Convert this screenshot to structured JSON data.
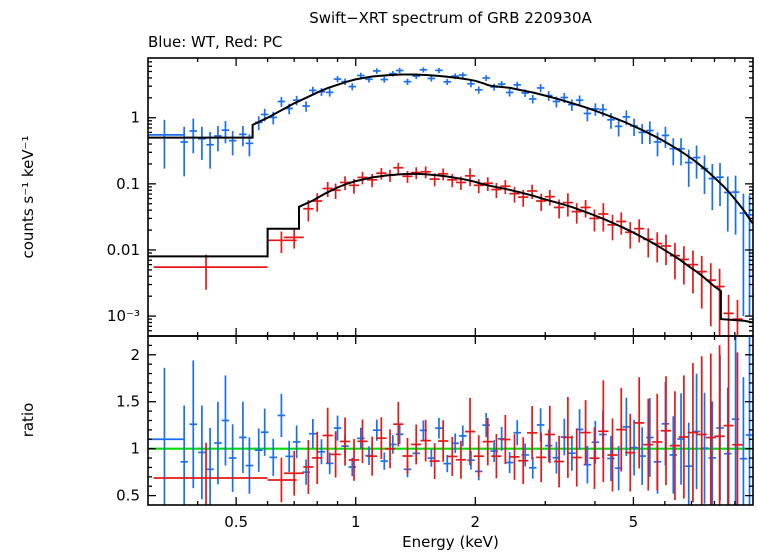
{
  "title": "Swift−XRT spectrum of GRB 220930A",
  "subtitle": "Blue: WT, Red: PC",
  "chart_data": {
    "type": "scatter",
    "description": "Two-panel X-ray spectrum: top = counts spectrum (log-log) with WT (blue) and PC (red) data points plus black folded model lines; bottom = data/model ratio (log x, linear y) with green unity line.",
    "xlabel": "Energy (keV)",
    "xlim": [
      0.3,
      10.0
    ],
    "xscale": "log",
    "xticks": {
      "major": [
        0.5,
        1,
        2,
        5
      ],
      "labels": [
        "0.5",
        "1",
        "2",
        "5"
      ],
      "minor": [
        0.4,
        0.6,
        0.7,
        0.8,
        0.9,
        3,
        4,
        6,
        7,
        8,
        9
      ]
    },
    "spectrum": {
      "ylabel": "counts s⁻¹ keV⁻¹",
      "yscale": "log",
      "ylim": [
        0.0005,
        8
      ],
      "model_color": "#000000",
      "yticks": [
        {
          "v": 0.001,
          "label": "10⁻³"
        },
        {
          "v": 0.01,
          "label": "0.01"
        },
        {
          "v": 0.1,
          "label": "0.1"
        },
        {
          "v": 1,
          "label": "1"
        }
      ],
      "wt": {
        "name": "WT",
        "color": "#1a6ff0",
        "model": [
          [
            0.3,
            0.5
          ],
          [
            0.55,
            0.5
          ],
          [
            0.55,
            0.78
          ],
          [
            0.6,
            1.0
          ],
          [
            0.65,
            1.3
          ],
          [
            0.7,
            1.65
          ],
          [
            0.75,
            2.0
          ],
          [
            0.8,
            2.4
          ],
          [
            0.85,
            2.8
          ],
          [
            0.9,
            3.15
          ],
          [
            0.95,
            3.5
          ],
          [
            1.0,
            3.8
          ],
          [
            1.05,
            4.0
          ],
          [
            1.1,
            4.2
          ],
          [
            1.2,
            4.4
          ],
          [
            1.3,
            4.5
          ],
          [
            1.4,
            4.5
          ],
          [
            1.5,
            4.42
          ],
          [
            1.6,
            4.3
          ],
          [
            1.7,
            4.15
          ],
          [
            1.8,
            4.0
          ],
          [
            1.9,
            3.82
          ],
          [
            2.0,
            3.62
          ],
          [
            2.05,
            3.45
          ],
          [
            2.1,
            3.3
          ],
          [
            2.15,
            3.12
          ],
          [
            2.2,
            3.02
          ],
          [
            2.25,
            2.98
          ],
          [
            2.35,
            2.9
          ],
          [
            2.45,
            2.82
          ],
          [
            2.6,
            2.62
          ],
          [
            2.8,
            2.4
          ],
          [
            3.0,
            2.16
          ],
          [
            3.25,
            1.9
          ],
          [
            3.5,
            1.66
          ],
          [
            3.75,
            1.46
          ],
          [
            4.0,
            1.28
          ],
          [
            4.25,
            1.12
          ],
          [
            4.5,
            0.98
          ],
          [
            4.75,
            0.86
          ],
          [
            5.0,
            0.75
          ],
          [
            5.25,
            0.655
          ],
          [
            5.5,
            0.572
          ],
          [
            5.75,
            0.5
          ],
          [
            6.0,
            0.432
          ],
          [
            6.25,
            0.375
          ],
          [
            6.5,
            0.325
          ],
          [
            6.75,
            0.281
          ],
          [
            7.0,
            0.242
          ],
          [
            7.25,
            0.206
          ],
          [
            7.5,
            0.175
          ],
          [
            7.75,
            0.148
          ],
          [
            8.0,
            0.124
          ],
          [
            8.25,
            0.104
          ],
          [
            8.5,
            0.087
          ],
          [
            8.75,
            0.072
          ],
          [
            9.0,
            0.059
          ],
          [
            9.25,
            0.048
          ],
          [
            9.5,
            0.039
          ],
          [
            9.75,
            0.031
          ],
          [
            10.0,
            0.025
          ]
        ],
        "points": [
          [
            0.33,
            0.55,
            0.38,
            0.3,
            0.37
          ],
          [
            0.37,
            0.43,
            0.3
          ],
          [
            0.39,
            0.63,
            0.34
          ],
          [
            0.41,
            0.48,
            0.25
          ],
          [
            0.43,
            0.39,
            0.22
          ],
          [
            0.45,
            0.53,
            0.22
          ],
          [
            0.47,
            0.65,
            0.24
          ],
          [
            0.49,
            0.45,
            0.18
          ],
          [
            0.52,
            0.56,
            0.19
          ],
          [
            0.54,
            0.41,
            0.15
          ],
          [
            0.57,
            0.85,
            0.2
          ],
          [
            0.59,
            1.12,
            0.24
          ],
          [
            0.62,
            1.01,
            0.22
          ],
          [
            0.65,
            1.76,
            0.3
          ],
          [
            0.68,
            1.38,
            0.25
          ],
          [
            0.71,
            1.84,
            0.3
          ],
          [
            0.75,
            1.5,
            0.27
          ],
          [
            0.78,
            2.59,
            0.35
          ],
          [
            0.82,
            2.47,
            0.34
          ],
          [
            0.86,
            2.42,
            0.33
          ],
          [
            0.9,
            3.84,
            0.42
          ],
          [
            0.94,
            3.52,
            0.4
          ],
          [
            0.98,
            2.96,
            0.36
          ],
          [
            1.03,
            4.35,
            0.44
          ],
          [
            1.08,
            3.81,
            0.41
          ],
          [
            1.13,
            5.1,
            0.48
          ],
          [
            1.18,
            3.78,
            0.4
          ],
          [
            1.24,
            4.64,
            0.44
          ],
          [
            1.29,
            5.18,
            0.47
          ],
          [
            1.35,
            3.51,
            0.38
          ],
          [
            1.42,
            4.26,
            0.42
          ],
          [
            1.48,
            5.3,
            0.47
          ],
          [
            1.55,
            3.92,
            0.4
          ],
          [
            1.62,
            5.2,
            0.47
          ],
          [
            1.7,
            3.49,
            0.38
          ],
          [
            1.78,
            4.26,
            0.42
          ],
          [
            1.86,
            4.42,
            0.43
          ],
          [
            1.95,
            3.26,
            0.37
          ],
          [
            2.04,
            2.64,
            0.33
          ],
          [
            2.13,
            3.99,
            0.41
          ],
          [
            2.23,
            2.92,
            0.35
          ],
          [
            2.33,
            3.22,
            0.37
          ],
          [
            2.44,
            2.41,
            0.32
          ],
          [
            2.55,
            3.14,
            0.36
          ],
          [
            2.67,
            2.37,
            0.31
          ],
          [
            2.79,
            1.92,
            0.28
          ],
          [
            2.92,
            2.82,
            0.4
          ],
          [
            3.06,
            2.16,
            0.36
          ],
          [
            3.2,
            1.76,
            0.33
          ],
          [
            3.35,
            2.02,
            0.35
          ],
          [
            3.5,
            1.58,
            0.31
          ],
          [
            3.66,
            1.84,
            0.33
          ],
          [
            3.83,
            1.16,
            0.28
          ],
          [
            4.01,
            1.36,
            0.29
          ],
          [
            4.19,
            1.33,
            0.29
          ],
          [
            4.39,
            0.93,
            0.25
          ],
          [
            4.59,
            0.74,
            0.22
          ],
          [
            4.8,
            1.03,
            0.26
          ],
          [
            5.02,
            0.75,
            0.22
          ],
          [
            5.26,
            0.6,
            0.2
          ],
          [
            5.5,
            0.64,
            0.24
          ],
          [
            5.75,
            0.43,
            0.17
          ],
          [
            6.02,
            0.54,
            0.19
          ],
          [
            6.3,
            0.34,
            0.15
          ],
          [
            6.59,
            0.34,
            0.15
          ],
          [
            6.89,
            0.21,
            0.12
          ],
          [
            7.21,
            0.25,
            0.13
          ],
          [
            7.55,
            0.17,
            0.1
          ],
          [
            7.9,
            0.12,
            0.08
          ],
          [
            8.26,
            0.126,
            0.08
          ],
          [
            8.64,
            0.074,
            0.055
          ],
          [
            9.04,
            0.075,
            0.058
          ],
          [
            9.46,
            0.036,
            0.035
          ],
          [
            9.8,
            0.034,
            0.033
          ]
        ]
      },
      "pc": {
        "name": "PC",
        "color": "#e51717",
        "model": [
          [
            0.3,
            0.008
          ],
          [
            0.6,
            0.008
          ],
          [
            0.6,
            0.021
          ],
          [
            0.72,
            0.021
          ],
          [
            0.72,
            0.045
          ],
          [
            0.78,
            0.056
          ],
          [
            0.84,
            0.072
          ],
          [
            0.9,
            0.088
          ],
          [
            0.95,
            0.1
          ],
          [
            1.0,
            0.11
          ],
          [
            1.1,
            0.125
          ],
          [
            1.2,
            0.134
          ],
          [
            1.3,
            0.14
          ],
          [
            1.4,
            0.142
          ],
          [
            1.5,
            0.14
          ],
          [
            1.6,
            0.135
          ],
          [
            1.7,
            0.129
          ],
          [
            1.8,
            0.122
          ],
          [
            1.9,
            0.115
          ],
          [
            2.0,
            0.107
          ],
          [
            2.1,
            0.098
          ],
          [
            2.2,
            0.092
          ],
          [
            2.4,
            0.083
          ],
          [
            2.6,
            0.074
          ],
          [
            2.8,
            0.066
          ],
          [
            3.0,
            0.058
          ],
          [
            3.25,
            0.051
          ],
          [
            3.5,
            0.0445
          ],
          [
            3.75,
            0.0385
          ],
          [
            4.0,
            0.0332
          ],
          [
            4.25,
            0.0287
          ],
          [
            4.5,
            0.0247
          ],
          [
            4.75,
            0.0213
          ],
          [
            5.0,
            0.0183
          ],
          [
            5.25,
            0.0157
          ],
          [
            5.5,
            0.0135
          ],
          [
            5.75,
            0.0116
          ],
          [
            6.0,
            0.0099
          ],
          [
            6.25,
            0.0085
          ],
          [
            6.5,
            0.0073
          ],
          [
            6.75,
            0.0062
          ],
          [
            7.0,
            0.0053
          ],
          [
            7.25,
            0.0046
          ],
          [
            7.5,
            0.0039
          ],
          [
            7.75,
            0.0033
          ],
          [
            8.0,
            0.0028
          ],
          [
            8.3,
            0.0024
          ],
          [
            8.3,
            0.0009
          ],
          [
            9.5,
            0.00085
          ],
          [
            10.0,
            0.0008
          ]
        ],
        "points": [
          [
            0.42,
            0.0055,
            0.003,
            0.31,
            0.6
          ],
          [
            0.65,
            0.014,
            0.005,
            0.6,
            0.71
          ],
          [
            0.7,
            0.0155,
            0.005,
            0.66,
            0.74
          ],
          [
            0.76,
            0.042,
            0.015
          ],
          [
            0.8,
            0.055,
            0.017
          ],
          [
            0.85,
            0.085,
            0.022
          ],
          [
            0.89,
            0.08,
            0.021
          ],
          [
            0.94,
            0.105,
            0.025
          ],
          [
            0.99,
            0.095,
            0.024
          ],
          [
            1.04,
            0.125,
            0.027
          ],
          [
            1.1,
            0.115,
            0.026
          ],
          [
            1.16,
            0.145,
            0.029
          ],
          [
            1.22,
            0.135,
            0.028
          ],
          [
            1.28,
            0.175,
            0.033
          ],
          [
            1.35,
            0.13,
            0.027
          ],
          [
            1.42,
            0.148,
            0.03
          ],
          [
            1.5,
            0.152,
            0.031
          ],
          [
            1.58,
            0.118,
            0.026
          ],
          [
            1.66,
            0.142,
            0.029
          ],
          [
            1.75,
            0.115,
            0.026
          ],
          [
            1.84,
            0.105,
            0.024
          ],
          [
            1.94,
            0.132,
            0.04
          ],
          [
            2.04,
            0.095,
            0.023
          ],
          [
            2.15,
            0.102,
            0.024
          ],
          [
            2.26,
            0.082,
            0.021
          ],
          [
            2.38,
            0.092,
            0.022
          ],
          [
            2.51,
            0.071,
            0.019
          ],
          [
            2.64,
            0.063,
            0.018
          ],
          [
            2.78,
            0.078,
            0.019
          ],
          [
            2.93,
            0.055,
            0.016
          ],
          [
            3.08,
            0.064,
            0.017
          ],
          [
            3.25,
            0.044,
            0.014
          ],
          [
            3.42,
            0.052,
            0.02
          ],
          [
            3.6,
            0.038,
            0.013
          ],
          [
            3.79,
            0.044,
            0.013
          ],
          [
            3.99,
            0.03,
            0.011
          ],
          [
            4.2,
            0.035,
            0.016
          ],
          [
            4.43,
            0.024,
            0.01
          ],
          [
            4.66,
            0.027,
            0.01
          ],
          [
            4.91,
            0.0185,
            0.008
          ],
          [
            5.17,
            0.021,
            0.008
          ],
          [
            5.45,
            0.0145,
            0.0068
          ],
          [
            5.74,
            0.0125,
            0.006
          ],
          [
            6.04,
            0.0115,
            0.0056
          ],
          [
            6.36,
            0.0082,
            0.0046
          ],
          [
            6.7,
            0.0072,
            0.0042
          ],
          [
            7.06,
            0.006,
            0.0038
          ],
          [
            7.43,
            0.0047,
            0.0034
          ],
          [
            7.83,
            0.0035,
            0.0028
          ],
          [
            8.24,
            0.0028,
            0.0024
          ],
          [
            8.68,
            0.0011,
            0.001
          ],
          [
            9.14,
            0.0009,
            0.00085
          ]
        ]
      }
    },
    "ratio": {
      "ylabel": "ratio",
      "yscale": "linear",
      "ylim": [
        0.4,
        2.2
      ],
      "reference": 1.0,
      "line_color": "#00dd00",
      "yticks": [
        0.5,
        1,
        1.5,
        2
      ],
      "ytick_labels": [
        "0.5",
        "1",
        "1.5",
        "2"
      ],
      "derived": "ratio = data points / model, same colors as spectrum panel"
    }
  }
}
